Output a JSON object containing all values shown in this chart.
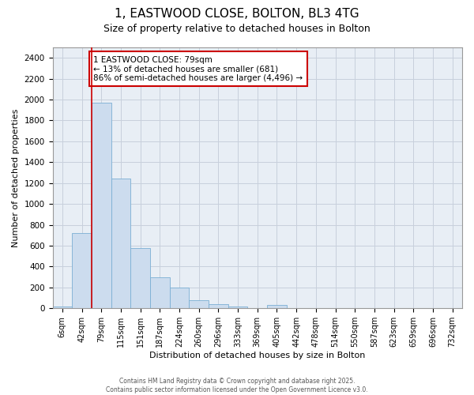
{
  "title_line1": "1, EASTWOOD CLOSE, BOLTON, BL3 4TG",
  "title_line2": "Size of property relative to detached houses in Bolton",
  "xlabel": "Distribution of detached houses by size in Bolton",
  "ylabel": "Number of detached properties",
  "bar_labels": [
    "6sqm",
    "42sqm",
    "79sqm",
    "115sqm",
    "151sqm",
    "187sqm",
    "224sqm",
    "260sqm",
    "296sqm",
    "333sqm",
    "369sqm",
    "405sqm",
    "442sqm",
    "478sqm",
    "514sqm",
    "550sqm",
    "587sqm",
    "623sqm",
    "659sqm",
    "696sqm",
    "732sqm"
  ],
  "bar_values": [
    15,
    720,
    1970,
    1240,
    575,
    300,
    200,
    80,
    40,
    15,
    0,
    35,
    5,
    0,
    0,
    0,
    0,
    0,
    0,
    0,
    0
  ],
  "bar_color": "#ccdcee",
  "bar_edgecolor": "#7bafd4",
  "property_bin_index": 2,
  "red_line_x": 1.5,
  "red_line_color": "#cc0000",
  "annotation_text": "1 EASTWOOD CLOSE: 79sqm\n← 13% of detached houses are smaller (681)\n86% of semi-detached houses are larger (4,496) →",
  "annotation_box_color": "#ffffff",
  "annotation_box_edgecolor": "#cc0000",
  "ylim": [
    0,
    2500
  ],
  "yticks": [
    0,
    200,
    400,
    600,
    800,
    1000,
    1200,
    1400,
    1600,
    1800,
    2000,
    2200,
    2400
  ],
  "grid_color": "#c8d0dc",
  "bg_color": "#e8eef5",
  "footer_text": "Contains HM Land Registry data © Crown copyright and database right 2025.\nContains public sector information licensed under the Open Government Licence v3.0.",
  "title_fontsize": 11,
  "subtitle_fontsize": 9,
  "fig_width": 6.0,
  "fig_height": 5.0
}
